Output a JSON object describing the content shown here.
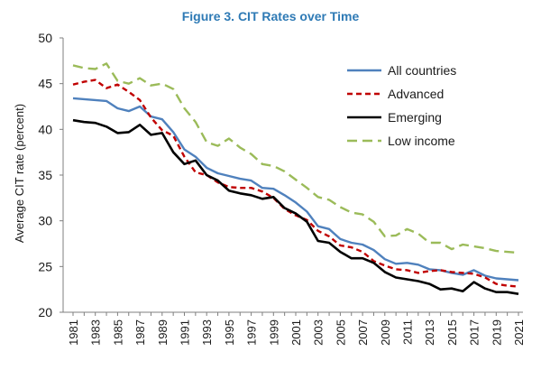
{
  "chart_data": {
    "type": "line",
    "title": "Figure 3. CIT Rates over Time",
    "xlabel": "",
    "ylabel": "Average CIT rate (percent)",
    "ylim": [
      20,
      50
    ],
    "yticks": [
      20,
      25,
      30,
      35,
      40,
      45,
      50
    ],
    "grid": false,
    "legend_position": "top-right",
    "title_color": "#2e7ab5",
    "x": [
      1981,
      1982,
      1983,
      1984,
      1985,
      1986,
      1987,
      1988,
      1989,
      1990,
      1991,
      1992,
      1993,
      1994,
      1995,
      1996,
      1997,
      1998,
      1999,
      2000,
      2001,
      2002,
      2003,
      2004,
      2005,
      2006,
      2007,
      2008,
      2009,
      2010,
      2011,
      2012,
      2013,
      2014,
      2015,
      2016,
      2017,
      2018,
      2019,
      2020,
      2021
    ],
    "xtick_labels": [
      "1981",
      "1983",
      "1985",
      "1987",
      "1989",
      "1991",
      "1993",
      "1995",
      "1997",
      "1999",
      "2001",
      "2003",
      "2005",
      "2007",
      "2009",
      "2011",
      "2013",
      "2015",
      "2017",
      "2019",
      "2021"
    ],
    "series": [
      {
        "name": "All countries",
        "color": "#4f81bd",
        "style": "solid",
        "values": [
          43.4,
          43.3,
          43.2,
          43.1,
          42.3,
          42.0,
          42.5,
          41.4,
          41.1,
          39.7,
          37.8,
          37.0,
          35.8,
          35.2,
          34.9,
          34.6,
          34.4,
          33.6,
          33.5,
          32.8,
          32.0,
          31.0,
          29.4,
          29.1,
          28.0,
          27.6,
          27.4,
          26.8,
          25.8,
          25.3,
          25.4,
          25.2,
          24.7,
          24.6,
          24.3,
          24.1,
          24.6,
          24.0,
          23.7,
          23.6,
          23.5
        ]
      },
      {
        "name": "Advanced",
        "color": "#c00000",
        "style": "dashed",
        "values": [
          44.9,
          45.2,
          45.4,
          44.5,
          44.9,
          44.1,
          43.2,
          41.3,
          39.9,
          39.3,
          37.0,
          35.3,
          35.0,
          34.2,
          33.7,
          33.6,
          33.6,
          33.2,
          32.5,
          31.3,
          30.6,
          30.1,
          28.9,
          28.3,
          27.3,
          27.1,
          26.6,
          25.6,
          25.1,
          24.7,
          24.6,
          24.3,
          24.5,
          24.6,
          24.4,
          24.3,
          24.2,
          23.8,
          23.1,
          22.9,
          22.8
        ]
      },
      {
        "name": "Emerging",
        "color": "#000000",
        "style": "solid",
        "values": [
          41.0,
          40.8,
          40.7,
          40.3,
          39.6,
          39.7,
          40.5,
          39.4,
          39.6,
          37.5,
          36.2,
          36.6,
          35.0,
          34.4,
          33.3,
          33.0,
          32.8,
          32.4,
          32.6,
          31.4,
          30.8,
          29.9,
          27.8,
          27.6,
          26.6,
          25.9,
          25.9,
          25.4,
          24.4,
          23.8,
          23.6,
          23.4,
          23.1,
          22.5,
          22.6,
          22.3,
          23.3,
          22.6,
          22.2,
          22.2,
          22.0
        ]
      },
      {
        "name": "Low income",
        "color": "#9bbb59",
        "style": "dashed",
        "values": [
          47.0,
          46.7,
          46.6,
          47.2,
          45.3,
          45.0,
          45.6,
          44.8,
          45.0,
          44.4,
          42.3,
          40.8,
          38.6,
          38.2,
          39.0,
          38.0,
          37.3,
          36.2,
          36.0,
          35.4,
          34.5,
          33.6,
          32.6,
          32.3,
          31.5,
          30.9,
          30.7,
          29.9,
          28.3,
          28.4,
          29.1,
          28.6,
          27.6,
          27.6,
          26.9,
          27.4,
          27.2,
          27.0,
          26.7,
          26.6,
          26.5
        ]
      }
    ]
  }
}
